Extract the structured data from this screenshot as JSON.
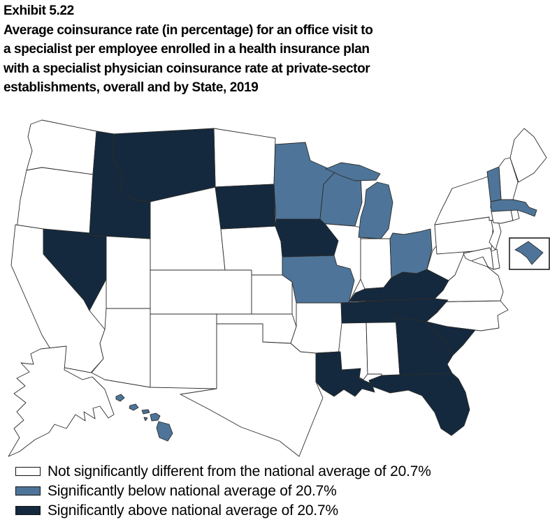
{
  "figure": {
    "exhibit_label": "Exhibit 5.22",
    "title_lines": [
      "Average coinsurance rate (in percentage) for an office visit to",
      "a specialist per employee enrolled in a health insurance plan",
      "with a specialist physician coinsurance rate at private-sector",
      "establishments, overall and by State, 2019"
    ]
  },
  "legend": {
    "items": [
      {
        "category": "not_different",
        "label": "Not significantly different from the national average of 20.7%",
        "color": "#ffffff"
      },
      {
        "category": "below",
        "label": "Significantly below national average of 20.7%",
        "color": "#4e7599"
      },
      {
        "category": "above",
        "label": "Significantly above national average of 20.7%",
        "color": "#14293e"
      }
    ]
  },
  "chart_data": {
    "type": "heatmap",
    "subtype": "us_state_choropleth",
    "title": "Average coinsurance rate (in percentage) for an office visit to a specialist per employee enrolled in a health insurance plan with a specialist physician coinsurance rate at private-sector establishments, overall and by State, 2019",
    "exhibit": "Exhibit 5.22",
    "year": 2019,
    "national_average_percent": 20.7,
    "categories": {
      "not_different": "Not significantly different from the national average of 20.7%",
      "below": "Significantly below national average of 20.7%",
      "above": "Significantly above national average of 20.7%"
    },
    "colors": {
      "not_different": "#ffffff",
      "below": "#4e7599",
      "above": "#14293e"
    },
    "state_categories": {
      "AL": "not_different",
      "AK": "not_different",
      "AZ": "not_different",
      "AR": "not_different",
      "CA": "not_different",
      "CO": "not_different",
      "CT": "not_different",
      "DE": "not_different",
      "DC": "below",
      "FL": "above",
      "GA": "above",
      "HI": "below",
      "ID": "above",
      "IL": "not_different",
      "IN": "not_different",
      "IA": "above",
      "KS": "not_different",
      "KY": "above",
      "LA": "above",
      "ME": "not_different",
      "MD": "not_different",
      "MA": "below",
      "MI": "below",
      "MN": "below",
      "MS": "not_different",
      "MO": "below",
      "MT": "above",
      "NE": "not_different",
      "NV": "above",
      "NH": "not_different",
      "NJ": "not_different",
      "NM": "not_different",
      "NY": "not_different",
      "NC": "not_different",
      "ND": "not_different",
      "OH": "below",
      "OK": "not_different",
      "OR": "not_different",
      "PA": "not_different",
      "RI": "not_different",
      "SC": "above",
      "SD": "above",
      "TN": "above",
      "TX": "not_different",
      "UT": "not_different",
      "VT": "below",
      "VA": "not_different",
      "WA": "not_different",
      "WV": "not_different",
      "WI": "below",
      "WY": "not_different"
    }
  }
}
